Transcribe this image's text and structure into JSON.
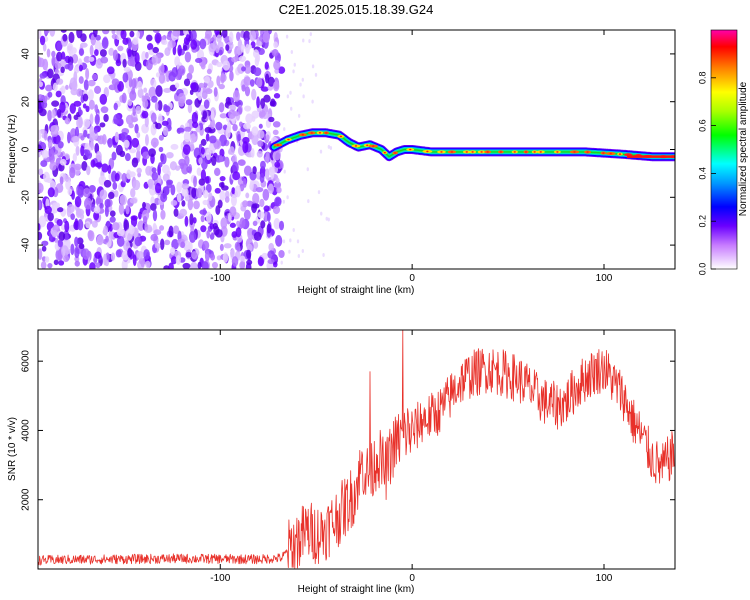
{
  "title": "C2E1.2025.015.18.39.G24",
  "chart_data": [
    {
      "type": "heatmap",
      "name": "spectrogram",
      "xlabel": "Height of straight line (km)",
      "ylabel": "Frequency (Hz)",
      "xlim": [
        -195,
        137
      ],
      "ylim": [
        -50,
        50
      ],
      "xticks": [
        -100,
        0,
        100
      ],
      "xtick_labels": [
        "-100",
        "0",
        "100"
      ],
      "yticks": [
        -40,
        -20,
        0,
        20,
        40
      ],
      "ytick_labels": [
        "-40",
        "-20",
        "0",
        "20",
        "40"
      ],
      "noise_region_x": [
        -195,
        -68
      ],
      "signal_track": {
        "x": [
          -72,
          -65,
          -58,
          -52,
          -45,
          -38,
          -33,
          -28,
          -22,
          -16,
          -12,
          -8,
          -4,
          0,
          10,
          30,
          50,
          70,
          90,
          110,
          125,
          137
        ],
        "frequency_hz": [
          1,
          4,
          6,
          7,
          7,
          6,
          3,
          1,
          2,
          0,
          -3,
          -1,
          0,
          0,
          -1,
          -1,
          -1,
          -1,
          -1,
          -2,
          -3,
          -3
        ]
      },
      "colorbar": {
        "label": "Normalized spectral amplitude",
        "range": [
          0,
          1
        ],
        "ticks": [
          0.0,
          0.2,
          0.4,
          0.6,
          0.8
        ],
        "tick_labels": [
          "0.0",
          "0.2",
          "0.4",
          "0.6",
          "0.8"
        ]
      }
    },
    {
      "type": "line",
      "name": "snr",
      "xlabel": "Height of straight line (km)",
      "ylabel": "SNR (10 * v/v)",
      "xlim": [
        -195,
        137
      ],
      "ylim": [
        0,
        6900
      ],
      "xticks": [
        -100,
        0,
        100
      ],
      "xtick_labels": [
        "-100",
        "0",
        "100"
      ],
      "yticks": [
        2000,
        4000,
        6000
      ],
      "ytick_labels": [
        "2000",
        "4000",
        "6000"
      ],
      "series": [
        {
          "name": "SNR",
          "color": "#e8312a",
          "x": [
            -195,
            -180,
            -160,
            -140,
            -120,
            -100,
            -80,
            -68,
            -62,
            -55,
            -48,
            -42,
            -36,
            -30,
            -26,
            -22,
            -18,
            -14,
            -10,
            -6,
            -2,
            0,
            5,
            10,
            15,
            20,
            25,
            30,
            35,
            40,
            45,
            50,
            55,
            60,
            65,
            70,
            75,
            80,
            85,
            90,
            95,
            100,
            105,
            110,
            115,
            120,
            125,
            130,
            137
          ],
          "values": [
            250,
            270,
            280,
            290,
            300,
            290,
            280,
            320,
            700,
            1100,
            1000,
            1300,
            1700,
            2200,
            3000,
            2600,
            3300,
            2800,
            3500,
            3800,
            4000,
            3900,
            4300,
            4400,
            4600,
            5000,
            5400,
            5600,
            5700,
            5800,
            5700,
            5600,
            5500,
            5300,
            5000,
            4800,
            4700,
            4800,
            5200,
            5500,
            5700,
            5800,
            5400,
            5000,
            4300,
            3800,
            3200,
            2900,
            3400
          ]
        }
      ],
      "spikes": [
        {
          "x": -22,
          "value": 5700
        },
        {
          "x": -5,
          "value": 6900
        }
      ]
    }
  ]
}
